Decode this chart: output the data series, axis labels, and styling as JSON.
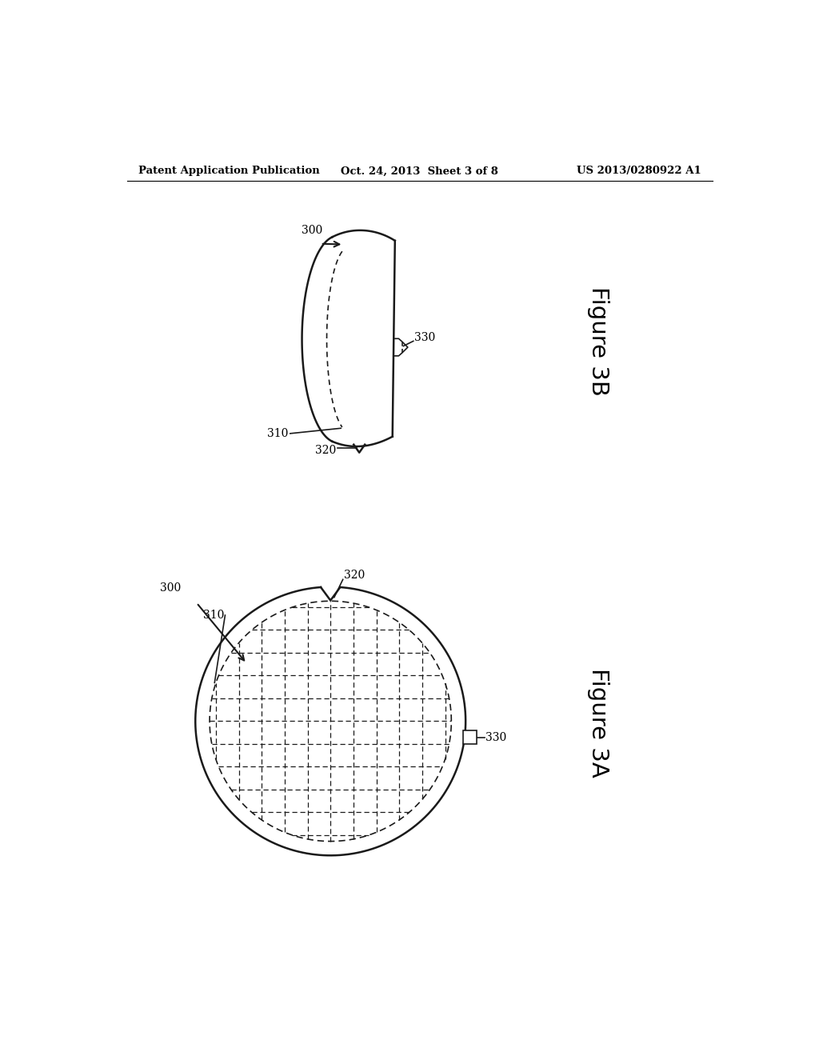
{
  "background_color": "#ffffff",
  "header_left": "Patent Application Publication",
  "header_center": "Oct. 24, 2013  Sheet 3 of 8",
  "header_right": "US 2013/0280922 A1",
  "fig3b_label": "Figure 3B",
  "fig3a_label": "Figure 3A",
  "label_300_3b": "300",
  "label_310_3b": "310",
  "label_320_3b": "320",
  "label_330_3b": "330",
  "label_300_3a": "300",
  "label_310_3a": "310",
  "label_320_3a": "320",
  "label_330_3a": "330",
  "line_color": "#1a1a1a",
  "lw_main": 1.8,
  "lw_thin": 1.2
}
